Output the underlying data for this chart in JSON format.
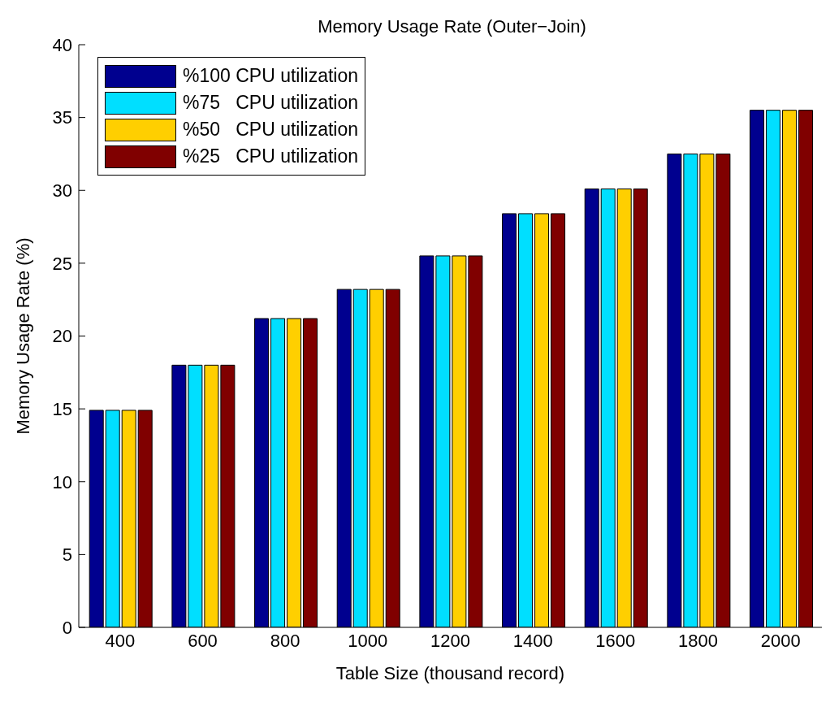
{
  "chart_data": {
    "type": "bar",
    "title": "Memory Usage Rate (Outer−Join)",
    "xlabel": "Table Size (thousand record)",
    "ylabel": "Memory Usage Rate (%)",
    "categories": [
      "400",
      "600",
      "800",
      "1000",
      "1200",
      "1400",
      "1600",
      "1800",
      "2000"
    ],
    "series": [
      {
        "name": "%100 CPU utilization",
        "color": "#00008f",
        "values": [
          14.9,
          18.0,
          21.2,
          23.2,
          25.5,
          28.4,
          30.1,
          32.5,
          35.5
        ]
      },
      {
        "name": "%75   CPU utilization",
        "color": "#00dfff",
        "values": [
          14.9,
          18.0,
          21.2,
          23.2,
          25.5,
          28.4,
          30.1,
          32.5,
          35.5
        ]
      },
      {
        "name": "%50   CPU utilization",
        "color": "#ffcf00",
        "values": [
          14.9,
          18.0,
          21.2,
          23.2,
          25.5,
          28.4,
          30.1,
          32.5,
          35.5
        ]
      },
      {
        "name": "%25   CPU utilization",
        "color": "#800000",
        "values": [
          14.9,
          18.0,
          21.2,
          23.2,
          25.5,
          28.4,
          30.1,
          32.5,
          35.5
        ]
      }
    ],
    "ylim": [
      0,
      40
    ],
    "yticks": [
      0,
      5,
      10,
      15,
      20,
      25,
      30,
      35,
      40
    ],
    "grid": false,
    "legend": "top left"
  }
}
